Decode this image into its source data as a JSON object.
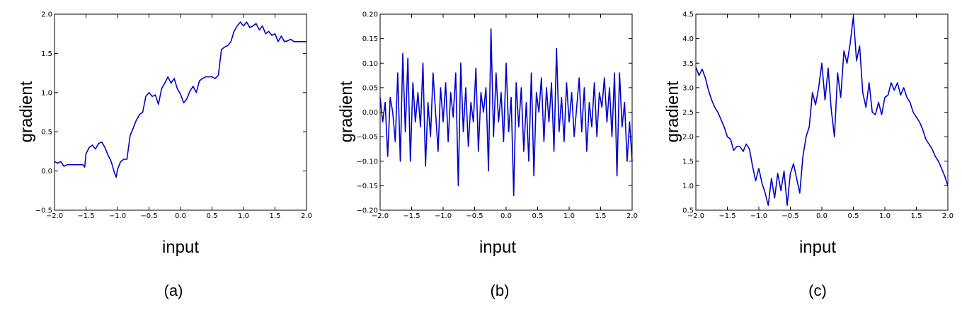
{
  "figure": {
    "line_color": "#0000cc"
  },
  "chart_data": [
    {
      "type": "line",
      "panel_label": "(a)",
      "xlabel": "input",
      "ylabel": "gradient",
      "xlim": [
        -2.0,
        2.0
      ],
      "ylim": [
        -0.5,
        2.0
      ],
      "xticks": [
        "−2.0",
        "−1.5",
        "−1.0",
        "−0.5",
        "0.0",
        "0.5",
        "1.0",
        "1.5",
        "2.0"
      ],
      "xtick_values": [
        -2.0,
        -1.5,
        -1.0,
        -0.5,
        0.0,
        0.5,
        1.0,
        1.5,
        2.0
      ],
      "yticks": [
        "−0.5",
        "0.0",
        "0.5",
        "1.0",
        "1.5",
        "2.0"
      ],
      "ytick_values": [
        -0.5,
        0.0,
        0.5,
        1.0,
        1.5,
        2.0
      ],
      "grid": false,
      "series": [
        {
          "x": [
            -2.0,
            -1.95,
            -1.9,
            -1.85,
            -1.8,
            -1.75,
            -1.7,
            -1.6,
            -1.55,
            -1.52,
            -1.5,
            -1.45,
            -1.4,
            -1.35,
            -1.3,
            -1.25,
            -1.2,
            -1.15,
            -1.1,
            -1.05,
            -1.02,
            -1.0,
            -0.95,
            -0.9,
            -0.85,
            -0.8,
            -0.75,
            -0.7,
            -0.65,
            -0.6,
            -0.55,
            -0.5,
            -0.45,
            -0.4,
            -0.35,
            -0.3,
            -0.25,
            -0.2,
            -0.15,
            -0.1,
            -0.05,
            0.0,
            0.05,
            0.1,
            0.15,
            0.2,
            0.25,
            0.3,
            0.35,
            0.4,
            0.45,
            0.5,
            0.55,
            0.6,
            0.65,
            0.7,
            0.75,
            0.8,
            0.85,
            0.9,
            0.95,
            1.0,
            1.05,
            1.1,
            1.15,
            1.2,
            1.25,
            1.3,
            1.35,
            1.4,
            1.45,
            1.5,
            1.55,
            1.6,
            1.65,
            1.7,
            1.75,
            1.8,
            1.85,
            1.9,
            1.95,
            2.0
          ],
          "y": [
            0.12,
            0.1,
            0.12,
            0.06,
            0.08,
            0.08,
            0.08,
            0.08,
            0.08,
            0.05,
            0.22,
            0.3,
            0.33,
            0.28,
            0.35,
            0.37,
            0.3,
            0.2,
            0.12,
            -0.02,
            -0.08,
            0.02,
            0.12,
            0.15,
            0.15,
            0.45,
            0.55,
            0.65,
            0.72,
            0.75,
            0.95,
            1.0,
            0.95,
            0.97,
            0.85,
            1.05,
            1.12,
            1.2,
            1.12,
            1.18,
            1.05,
            0.98,
            0.87,
            0.92,
            1.02,
            1.08,
            1.0,
            1.15,
            1.18,
            1.2,
            1.2,
            1.2,
            1.18,
            1.22,
            1.55,
            1.58,
            1.6,
            1.65,
            1.78,
            1.85,
            1.9,
            1.85,
            1.9,
            1.83,
            1.85,
            1.88,
            1.8,
            1.85,
            1.75,
            1.78,
            1.73,
            1.75,
            1.65,
            1.72,
            1.65,
            1.66,
            1.68,
            1.65,
            1.65,
            1.65,
            1.65,
            1.65
          ]
        }
      ]
    },
    {
      "type": "line",
      "panel_label": "(b)",
      "xlabel": "input",
      "ylabel": "gradient",
      "xlim": [
        -2.0,
        2.0
      ],
      "ylim": [
        -0.2,
        0.2
      ],
      "xticks": [
        "−2.0",
        "−1.5",
        "−1.0",
        "−0.5",
        "0.0",
        "0.5",
        "1.0",
        "1.5",
        "2.0"
      ],
      "xtick_values": [
        -2.0,
        -1.5,
        -1.0,
        -0.5,
        0.0,
        0.5,
        1.0,
        1.5,
        2.0
      ],
      "yticks": [
        "−0.20",
        "−0.15",
        "−0.10",
        "−0.05",
        "0.00",
        "0.05",
        "0.10",
        "0.15",
        "0.20"
      ],
      "ytick_values": [
        -0.2,
        -0.15,
        -0.1,
        -0.05,
        0.0,
        0.05,
        0.1,
        0.15,
        0.2
      ],
      "grid": false,
      "series": [
        {
          "x": [
            -2.0,
            -1.96,
            -1.92,
            -1.88,
            -1.84,
            -1.8,
            -1.76,
            -1.72,
            -1.68,
            -1.64,
            -1.6,
            -1.56,
            -1.52,
            -1.48,
            -1.44,
            -1.4,
            -1.36,
            -1.32,
            -1.28,
            -1.24,
            -1.2,
            -1.16,
            -1.12,
            -1.08,
            -1.04,
            -1.0,
            -0.96,
            -0.92,
            -0.88,
            -0.84,
            -0.8,
            -0.76,
            -0.72,
            -0.68,
            -0.64,
            -0.6,
            -0.56,
            -0.52,
            -0.48,
            -0.44,
            -0.4,
            -0.36,
            -0.32,
            -0.28,
            -0.24,
            -0.2,
            -0.16,
            -0.12,
            -0.08,
            -0.04,
            0.0,
            0.04,
            0.08,
            0.12,
            0.16,
            0.2,
            0.24,
            0.28,
            0.32,
            0.36,
            0.4,
            0.44,
            0.48,
            0.52,
            0.56,
            0.6,
            0.64,
            0.68,
            0.72,
            0.76,
            0.8,
            0.84,
            0.88,
            0.92,
            0.96,
            1.0,
            1.04,
            1.08,
            1.12,
            1.16,
            1.2,
            1.24,
            1.28,
            1.32,
            1.36,
            1.4,
            1.44,
            1.48,
            1.52,
            1.56,
            1.6,
            1.64,
            1.68,
            1.72,
            1.76,
            1.8,
            1.84,
            1.88,
            1.92,
            1.96,
            2.0
          ],
          "y": [
            0.03,
            -0.02,
            0.02,
            -0.09,
            0.03,
            0.0,
            -0.06,
            0.08,
            -0.1,
            0.12,
            -0.04,
            0.11,
            -0.1,
            0.06,
            -0.02,
            0.04,
            -0.03,
            0.1,
            -0.11,
            0.02,
            -0.05,
            0.08,
            0.0,
            -0.08,
            0.05,
            -0.02,
            0.06,
            -0.06,
            0.04,
            -0.01,
            0.08,
            -0.15,
            0.1,
            -0.04,
            0.05,
            -0.07,
            0.02,
            -0.02,
            0.09,
            -0.08,
            0.04,
            0.0,
            0.05,
            -0.12,
            0.17,
            -0.05,
            0.08,
            -0.02,
            0.04,
            -0.06,
            0.1,
            -0.04,
            0.03,
            -0.17,
            0.06,
            -0.03,
            0.05,
            -0.08,
            0.02,
            -0.1,
            0.08,
            -0.13,
            0.04,
            0.0,
            0.07,
            -0.06,
            0.05,
            -0.02,
            0.06,
            -0.08,
            0.13,
            -0.04,
            0.03,
            -0.06,
            0.06,
            -0.02,
            0.04,
            -0.05,
            0.01,
            0.07,
            -0.04,
            0.05,
            -0.08,
            0.02,
            -0.03,
            0.06,
            -0.05,
            0.04,
            0.01,
            0.07,
            -0.02,
            0.05,
            -0.05,
            0.08,
            -0.13,
            0.08,
            -0.03,
            0.02,
            -0.1,
            -0.02,
            -0.1
          ]
        }
      ]
    },
    {
      "type": "line",
      "panel_label": "(c)",
      "xlabel": "input",
      "ylabel": "gradient",
      "xlim": [
        -2.0,
        2.0
      ],
      "ylim": [
        0.5,
        4.5
      ],
      "xticks": [
        "−2.0",
        "−1.5",
        "−1.0",
        "−0.5",
        "0.0",
        "0.5",
        "1.0",
        "1.5",
        "2.0"
      ],
      "xtick_values": [
        -2.0,
        -1.5,
        -1.0,
        -0.5,
        0.0,
        0.5,
        1.0,
        1.5,
        2.0
      ],
      "yticks": [
        "0.5",
        "1.0",
        "1.5",
        "2.0",
        "2.5",
        "3.0",
        "3.5",
        "4.0",
        "4.5"
      ],
      "ytick_values": [
        0.5,
        1.0,
        1.5,
        2.0,
        2.5,
        3.0,
        3.5,
        4.0,
        4.5
      ],
      "grid": false,
      "series": [
        {
          "x": [
            -2.0,
            -1.95,
            -1.9,
            -1.85,
            -1.8,
            -1.75,
            -1.7,
            -1.65,
            -1.6,
            -1.55,
            -1.5,
            -1.45,
            -1.4,
            -1.35,
            -1.3,
            -1.25,
            -1.2,
            -1.15,
            -1.1,
            -1.05,
            -1.0,
            -0.95,
            -0.9,
            -0.85,
            -0.8,
            -0.75,
            -0.7,
            -0.65,
            -0.6,
            -0.55,
            -0.5,
            -0.45,
            -0.4,
            -0.35,
            -0.3,
            -0.25,
            -0.2,
            -0.15,
            -0.1,
            -0.05,
            0.0,
            0.05,
            0.1,
            0.15,
            0.2,
            0.25,
            0.3,
            0.35,
            0.4,
            0.45,
            0.5,
            0.55,
            0.6,
            0.65,
            0.7,
            0.75,
            0.8,
            0.85,
            0.9,
            0.95,
            1.0,
            1.05,
            1.1,
            1.15,
            1.2,
            1.25,
            1.3,
            1.35,
            1.4,
            1.45,
            1.5,
            1.55,
            1.6,
            1.65,
            1.7,
            1.75,
            1.8,
            1.85,
            1.9,
            1.95,
            2.0
          ],
          "y": [
            3.42,
            3.25,
            3.38,
            3.2,
            2.95,
            2.75,
            2.6,
            2.5,
            2.35,
            2.2,
            2.0,
            1.95,
            1.72,
            1.8,
            1.8,
            1.7,
            1.85,
            1.75,
            1.4,
            1.1,
            1.35,
            1.05,
            0.85,
            0.6,
            1.15,
            0.75,
            1.25,
            0.9,
            1.3,
            0.6,
            1.25,
            1.45,
            1.15,
            0.85,
            1.6,
            2.0,
            2.2,
            2.9,
            2.65,
            3.0,
            3.5,
            2.75,
            3.4,
            2.55,
            2.0,
            3.3,
            2.8,
            3.75,
            3.5,
            3.9,
            4.45,
            3.55,
            3.85,
            2.9,
            2.6,
            3.1,
            2.5,
            2.45,
            2.7,
            2.45,
            2.8,
            2.85,
            3.1,
            2.95,
            3.1,
            2.85,
            3.0,
            2.8,
            2.7,
            2.5,
            2.4,
            2.3,
            2.15,
            1.95,
            1.85,
            1.75,
            1.6,
            1.5,
            1.35,
            1.2,
            1.0
          ]
        }
      ]
    }
  ]
}
